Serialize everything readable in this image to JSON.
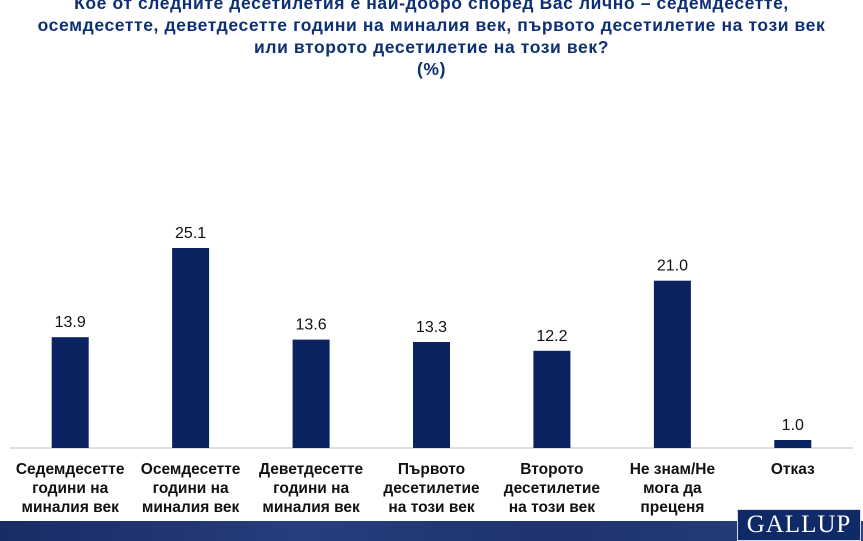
{
  "chart_data": {
    "type": "bar",
    "title_lines": [
      "Кое от следните десетилетия е най-добро според Вас лично – седемдесетте,",
      "осемдесетте, деветдесетте години на миналия век, първото десетилетие на този век",
      "или второто десетилетие на този век?",
      "(%)"
    ],
    "categories": [
      [
        "Седемдесетте",
        "години на",
        "миналия век"
      ],
      [
        "Осемдесетте",
        "години на",
        "миналия век"
      ],
      [
        "Деветдесетте",
        "години на",
        "миналия век"
      ],
      [
        "Първото",
        "десетилетие",
        "на този век"
      ],
      [
        "Второто",
        "десетилетие",
        "на този век"
      ],
      [
        "Не знам/Не",
        "мога да",
        "преценя"
      ],
      [
        "Отказ"
      ]
    ],
    "values": [
      13.9,
      25.1,
      13.6,
      13.3,
      12.2,
      21.0,
      1.0
    ],
    "value_labels": [
      "13.9",
      "25.1",
      "13.6",
      "13.3",
      "12.2",
      "21.0",
      "1.0"
    ],
    "bar_color": "#0b2260",
    "ylim": [
      0,
      25.1
    ],
    "grid": false,
    "legend": "none"
  },
  "branding": {
    "logo_text": "GALLUP"
  }
}
